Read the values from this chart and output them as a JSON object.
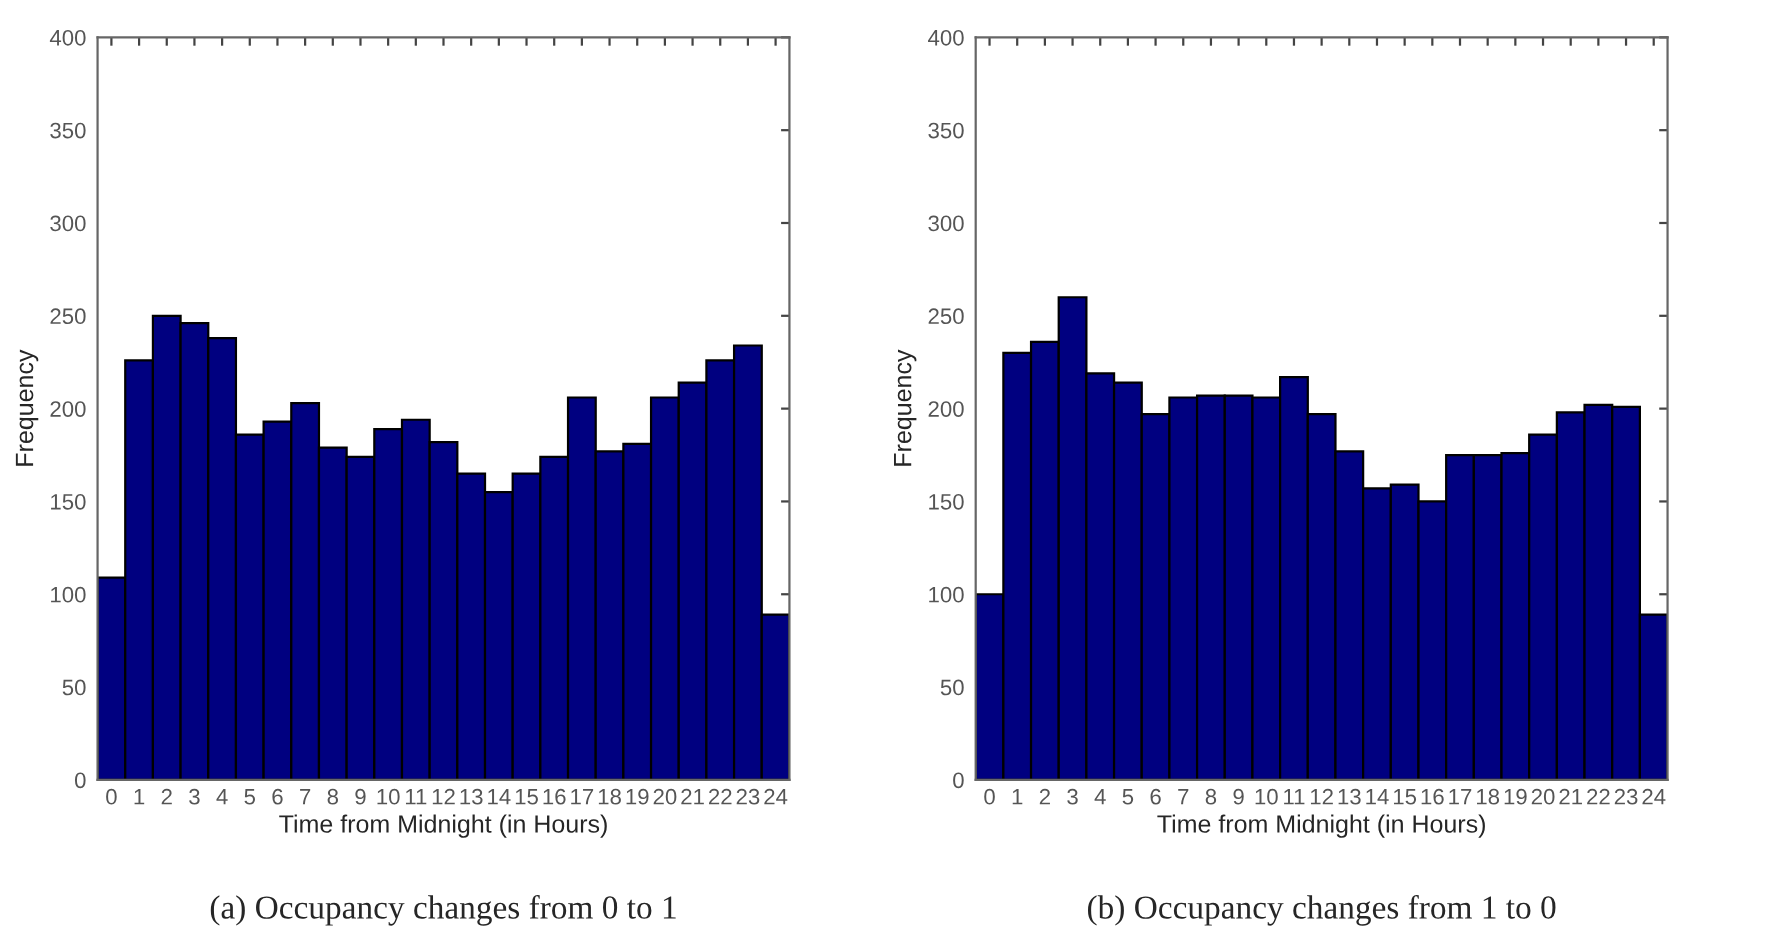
{
  "chart_data": [
    {
      "type": "bar",
      "xlabel": "Time from Midnight (in Hours)",
      "ylabel": "Frequency",
      "annotations": [
        "(a) Occupancy changes from 0 to 1"
      ],
      "categories": [
        "0",
        "1",
        "2",
        "3",
        "4",
        "5",
        "6",
        "7",
        "8",
        "9",
        "10",
        "11",
        "12",
        "13",
        "14",
        "15",
        "16",
        "17",
        "18",
        "19",
        "20",
        "21",
        "22",
        "23",
        "24"
      ],
      "series": [
        {
          "color": "#000080",
          "values": [
            109,
            226,
            250,
            246,
            238,
            186,
            193,
            203,
            179,
            174,
            189,
            194,
            182,
            165,
            155,
            165,
            174,
            206,
            177,
            181,
            206,
            214,
            226,
            234,
            89
          ]
        }
      ],
      "ylim": [
        0,
        400
      ],
      "yticks": [
        0,
        50,
        100,
        150,
        200,
        250,
        300,
        350,
        400
      ]
    },
    {
      "type": "bar",
      "xlabel": "Time from Midnight (in Hours)",
      "ylabel": "Frequency",
      "annotations": [
        "(b) Occupancy changes from 1 to 0"
      ],
      "categories": [
        "0",
        "1",
        "2",
        "3",
        "4",
        "5",
        "6",
        "7",
        "8",
        "9",
        "10",
        "11",
        "12",
        "13",
        "14",
        "15",
        "16",
        "17",
        "18",
        "19",
        "20",
        "21",
        "22",
        "23",
        "24"
      ],
      "series": [
        {
          "color": "#000080",
          "values": [
            100,
            230,
            236,
            260,
            219,
            214,
            197,
            206,
            207,
            207,
            206,
            217,
            197,
            177,
            157,
            159,
            150,
            175,
            175,
            176,
            186,
            198,
            202,
            201,
            89
          ]
        }
      ],
      "ylim": [
        0,
        400
      ],
      "yticks": [
        0,
        50,
        100,
        150,
        200,
        250,
        300,
        350,
        400
      ]
    }
  ]
}
